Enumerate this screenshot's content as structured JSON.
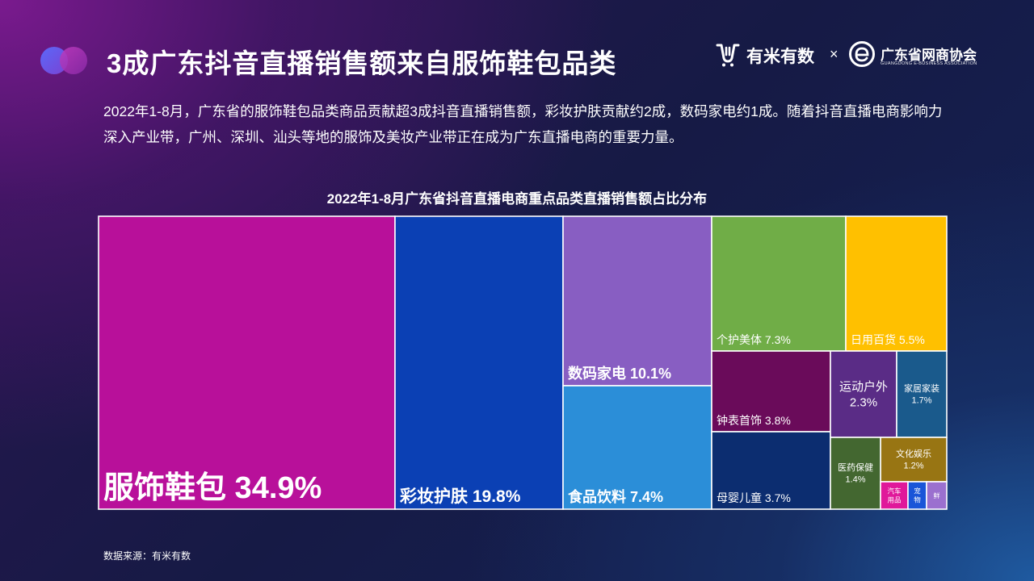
{
  "header": {
    "title": "3成广东抖音直播销售额来自服饰鞋包品类",
    "logo1_text": "有米有数",
    "times_symbol": "×",
    "logo2_text": "广东省网商协会",
    "logo2_sub": "GUANGDONG E-BUSINESS ASSOCIATION"
  },
  "description": "2022年1-8月，广东省的服饰鞋包品类商品贡献超3成抖音直播销售额，彩妆护肤贡献约2成，数码家电约1成。随着抖音直播电商影响力深入产业带，广州、深圳、汕头等地的服饰及美妆产业带正在成为广东直播电商的重要力量。",
  "source": "数据来源：有米有数",
  "chart_data": {
    "type": "treemap",
    "title": "2022年1-8月广东省抖音直播电商重点品类直播销售额占比分布",
    "unit": "%",
    "items": [
      {
        "name": "服饰鞋包",
        "value": 34.9,
        "label": "服饰鞋包 34.9%",
        "color": "#b8109a"
      },
      {
        "name": "彩妆护肤",
        "value": 19.8,
        "label": "彩妆护肤 19.8%",
        "color": "#0b40b4"
      },
      {
        "name": "数码家电",
        "value": 10.1,
        "label": "数码家电 10.1%",
        "color": "#885ec2"
      },
      {
        "name": "食品饮料",
        "value": 7.4,
        "label": "食品饮料 7.4%",
        "color": "#2b8ed8"
      },
      {
        "name": "个护美体",
        "value": 7.3,
        "label": "个护美体 7.3%",
        "color": "#70ad47"
      },
      {
        "name": "日用百货",
        "value": 5.5,
        "label": "日用百货 5.5%",
        "color": "#ffc000"
      },
      {
        "name": "钟表首饰",
        "value": 3.8,
        "label": "钟表首饰 3.8%",
        "color": "#6a0b5a"
      },
      {
        "name": "母婴儿童",
        "value": 3.7,
        "label": "母婴儿童 3.7%",
        "color": "#0c2d70"
      },
      {
        "name": "运动户外",
        "value": 2.3,
        "label": "运动户外\n2.3%",
        "color": "#5a2c86"
      },
      {
        "name": "家居家装",
        "value": 1.7,
        "label": "家居家装\n1.7%",
        "color": "#1a5a8c"
      },
      {
        "name": "文化娱乐",
        "value": 1.2,
        "label": "文化娱乐\n1.2%",
        "color": "#987513"
      },
      {
        "name": "医药保健",
        "value": 1.4,
        "label": "医药保健\n1.4%",
        "color": "#436730"
      },
      {
        "name": "汽车用品",
        "value": null,
        "label": "汽车\n用品",
        "color": "#e0189a"
      },
      {
        "name": "宠物",
        "value": null,
        "label": "宠\n物",
        "color": "#1a55d8"
      },
      {
        "name": "鲜",
        "value": null,
        "label": "鲜",
        "color": "#9b70cf"
      }
    ]
  }
}
